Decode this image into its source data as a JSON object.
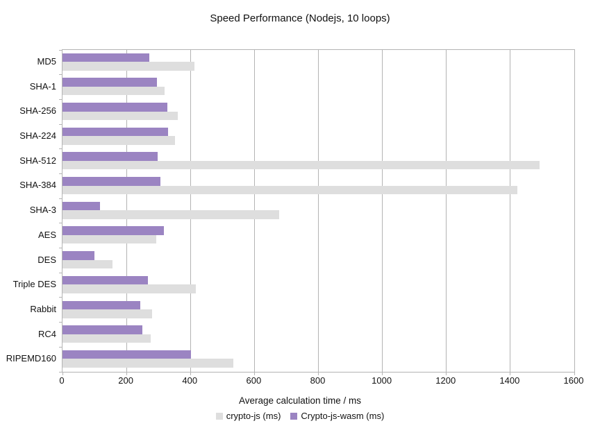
{
  "title": "Speed Performance (Nodejs, 10 loops)",
  "chart_data": {
    "type": "bar",
    "orientation": "horizontal",
    "title": "Speed Performance (Nodejs, 10 loops)",
    "xlabel": "Average calculation time / ms",
    "ylabel": "",
    "xlim": [
      0,
      1600
    ],
    "xticks": [
      0,
      200,
      400,
      600,
      800,
      1000,
      1200,
      1400,
      1600
    ],
    "grid": true,
    "legend_position": "bottom",
    "categories": [
      "MD5",
      "SHA-1",
      "SHA-256",
      "SHA-224",
      "SHA-512",
      "SHA-384",
      "SHA-3",
      "AES",
      "DES",
      "Triple DES",
      "Rabbit",
      "RC4",
      "RIPEMD160"
    ],
    "series": [
      {
        "name": "crypto-js (ms)",
        "color": "#dedede",
        "values": [
          413,
          320,
          361,
          352,
          1491,
          1421,
          677,
          293,
          156,
          416,
          279,
          276,
          535
        ]
      },
      {
        "name": "Crypto-js-wasm (ms)",
        "color": "#9b84c2",
        "values": [
          271,
          296,
          328,
          329,
          298,
          307,
          118,
          318,
          100,
          266,
          243,
          249,
          401
        ]
      }
    ]
  },
  "colors": {
    "grid": "#b3b3b3",
    "text": "#111111",
    "background": "#ffffff"
  }
}
